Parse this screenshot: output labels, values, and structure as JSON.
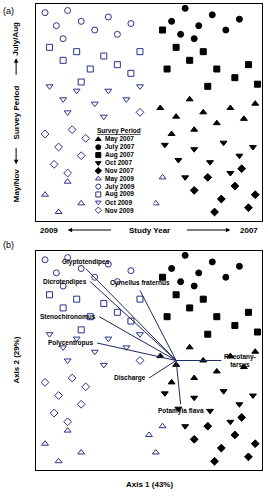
{
  "chart_data": [
    {
      "panel": "(a)",
      "type": "scatter",
      "x_label": "Study Year",
      "y_label": "Survey Period",
      "x_axis_ends": [
        "2009",
        "2007"
      ],
      "y_axis_ends": [
        "May/Nov",
        "July/Aug"
      ],
      "xlim": [
        0,
        100
      ],
      "ylim": [
        0,
        100
      ],
      "tick_labels": false,
      "grid": false,
      "legend": "bottom",
      "legend_title": "Survey Period",
      "series": [
        {
          "name": "May 2007",
          "marker": "triangle-up",
          "color": "#000000",
          "x": [
            55,
            62,
            68,
            74,
            80,
            86,
            92,
            70,
            60,
            97
          ],
          "y": [
            52,
            48,
            56,
            50,
            45,
            52,
            47,
            42,
            40,
            54
          ]
        },
        {
          "name": "July 2007",
          "marker": "circle",
          "color": "#000000",
          "x": [
            60,
            66,
            72,
            78,
            84,
            70,
            90,
            64
          ],
          "y": [
            92,
            98,
            90,
            95,
            88,
            84,
            93,
            86
          ]
        },
        {
          "name": "Aug 2007",
          "marker": "square",
          "color": "#000000",
          "x": [
            56,
            62,
            68,
            74,
            80,
            88,
            94,
            98,
            76,
            58
          ],
          "y": [
            88,
            80,
            74,
            78,
            70,
            66,
            72,
            63,
            62,
            70
          ]
        },
        {
          "name": "Oct 2007",
          "marker": "triangle-down",
          "color": "#000000",
          "x": [
            57,
            63,
            70,
            77,
            83,
            90,
            66,
            86,
            96
          ],
          "y": [
            35,
            28,
            33,
            27,
            36,
            30,
            20,
            22,
            34
          ]
        },
        {
          "name": "Nov 2007",
          "marker": "diamond",
          "color": "#000000",
          "x": [
            70,
            76,
            82,
            88,
            94,
            97,
            79,
            91
          ],
          "y": [
            14,
            20,
            10,
            16,
            6,
            12,
            4,
            24
          ]
        },
        {
          "name": "May 2009",
          "marker": "triangle-up-open",
          "color": "#27348b",
          "x": [
            4,
            10,
            14,
            50,
            53,
            56,
            20
          ],
          "y": [
            12,
            4,
            18,
            16,
            8,
            20,
            8
          ]
        },
        {
          "name": "July 2009",
          "marker": "circle-open",
          "color": "#27348b",
          "x": [
            4,
            9,
            14,
            20,
            26,
            32,
            12,
            36,
            42
          ],
          "y": [
            96,
            90,
            97,
            92,
            88,
            94,
            84,
            86,
            91
          ]
        },
        {
          "name": "Aug 2009",
          "marker": "square-open",
          "color": "#27348b",
          "x": [
            6,
            12,
            18,
            24,
            30,
            36,
            42,
            46,
            20
          ],
          "y": [
            80,
            74,
            78,
            70,
            76,
            72,
            68,
            78,
            64
          ]
        },
        {
          "name": "Oct 2009",
          "marker": "triangle-down-open",
          "color": "#27348b",
          "x": [
            6,
            12,
            18,
            26,
            32,
            40,
            46,
            14,
            30
          ],
          "y": [
            62,
            56,
            60,
            54,
            60,
            56,
            62,
            50,
            48
          ]
        },
        {
          "name": "Nov 2009",
          "marker": "diamond-open",
          "color": "#27348b",
          "x": [
            4,
            10,
            16,
            20,
            8,
            14,
            46,
            22
          ],
          "y": [
            40,
            34,
            42,
            30,
            26,
            22,
            50,
            38
          ]
        }
      ]
    },
    {
      "panel": "(b)",
      "type": "scatter",
      "x_label": "Axis 1 (43%)",
      "y_label": "Axis 2 (29%)",
      "xlim": [
        0,
        100
      ],
      "ylim": [
        0,
        100
      ],
      "tick_labels": false,
      "grid": false,
      "series": [
        {
          "name": "May 2007",
          "marker": "triangle-up",
          "color": "#000000",
          "x": [
            55,
            62,
            68,
            74,
            80,
            86,
            92,
            70,
            60,
            97
          ],
          "y": [
            52,
            48,
            56,
            50,
            45,
            52,
            47,
            42,
            40,
            54
          ]
        },
        {
          "name": "July 2007",
          "marker": "circle",
          "color": "#000000",
          "x": [
            60,
            66,
            72,
            78,
            84,
            70,
            90,
            64
          ],
          "y": [
            92,
            98,
            90,
            95,
            88,
            84,
            93,
            86
          ]
        },
        {
          "name": "Aug 2007",
          "marker": "square",
          "color": "#000000",
          "x": [
            56,
            62,
            68,
            74,
            80,
            88,
            94,
            98,
            76,
            58
          ],
          "y": [
            88,
            80,
            74,
            78,
            70,
            66,
            72,
            63,
            62,
            70
          ]
        },
        {
          "name": "Oct 2007",
          "marker": "triangle-down",
          "color": "#000000",
          "x": [
            57,
            63,
            70,
            77,
            83,
            90,
            66,
            86,
            96
          ],
          "y": [
            35,
            28,
            33,
            27,
            36,
            30,
            20,
            22,
            34
          ]
        },
        {
          "name": "Nov 2007",
          "marker": "diamond",
          "color": "#000000",
          "x": [
            70,
            76,
            82,
            88,
            94,
            97,
            79,
            91
          ],
          "y": [
            14,
            20,
            10,
            16,
            6,
            12,
            4,
            24
          ]
        },
        {
          "name": "May 2009",
          "marker": "triangle-up-open",
          "color": "#27348b",
          "x": [
            4,
            10,
            14,
            50,
            53,
            56,
            20
          ],
          "y": [
            12,
            4,
            18,
            16,
            8,
            20,
            8
          ]
        },
        {
          "name": "July 2009",
          "marker": "circle-open",
          "color": "#27348b",
          "x": [
            4,
            9,
            14,
            20,
            26,
            32,
            12,
            36,
            42
          ],
          "y": [
            96,
            90,
            97,
            92,
            88,
            94,
            84,
            86,
            91
          ]
        },
        {
          "name": "Aug 2009",
          "marker": "square-open",
          "color": "#27348b",
          "x": [
            6,
            12,
            18,
            24,
            30,
            36,
            42,
            46,
            20
          ],
          "y": [
            80,
            74,
            78,
            70,
            76,
            72,
            68,
            78,
            64
          ]
        },
        {
          "name": "Oct 2009",
          "marker": "triangle-down-open",
          "color": "#27348b",
          "x": [
            6,
            12,
            18,
            26,
            32,
            40,
            46,
            14,
            30
          ],
          "y": [
            62,
            56,
            60,
            54,
            60,
            56,
            62,
            50,
            48
          ]
        },
        {
          "name": "Nov 2009",
          "marker": "diamond-open",
          "color": "#27348b",
          "x": [
            4,
            10,
            16,
            20,
            8,
            14,
            46,
            22
          ],
          "y": [
            40,
            34,
            42,
            30,
            26,
            22,
            50,
            38
          ]
        }
      ],
      "vector_origin": [
        62,
        50
      ],
      "vectors": [
        {
          "name": "Glyptotendipes",
          "x": 22,
          "y": 92
        },
        {
          "name": "Dicrotendipes",
          "x": 24,
          "y": 86
        },
        {
          "name": "Cyrnellus fraternus",
          "x": 46,
          "y": 82
        },
        {
          "name": "Stenochironomus",
          "x": 28,
          "y": 70
        },
        {
          "name": "Polycentropus",
          "x": 27,
          "y": 58
        },
        {
          "name": "Rheotany-\ntarsus",
          "x": 82,
          "y": 50
        },
        {
          "name": "Discharge",
          "x": 50,
          "y": 42
        },
        {
          "name": "Potamyia flava",
          "x": 64,
          "y": 30
        }
      ]
    }
  ]
}
